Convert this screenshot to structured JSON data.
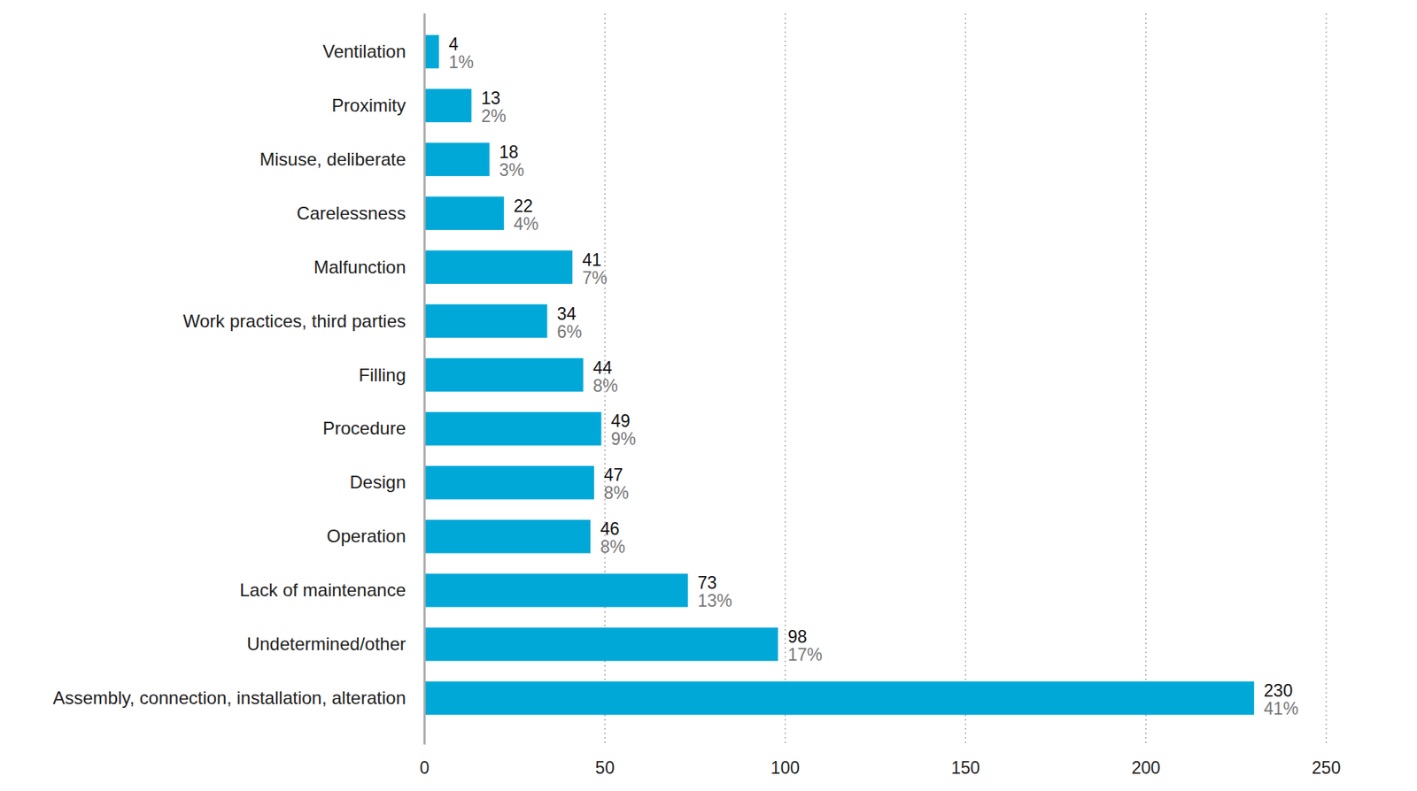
{
  "chart_data": {
    "type": "bar",
    "orientation": "horizontal",
    "categories": [
      "Ventilation",
      "Proximity",
      "Misuse, deliberate",
      "Carelessness",
      "Malfunction",
      "Work practices, third parties",
      "Filling",
      "Procedure",
      "Design",
      "Operation",
      "Lack of maintenance",
      "Undetermined/other",
      "Assembly, connection, installation, alteration"
    ],
    "values": [
      4,
      13,
      18,
      22,
      41,
      34,
      44,
      49,
      47,
      46,
      73,
      98,
      230
    ],
    "percent_labels": [
      "1%",
      "2%",
      "3%",
      "4%",
      "7%",
      "6%",
      "8%",
      "9%",
      "8%",
      "8%",
      "13%",
      "17%",
      "41%"
    ],
    "color": "#00a8d8",
    "xlim": [
      0,
      250
    ],
    "xticks": [
      0,
      50,
      100,
      150,
      200,
      250
    ],
    "grid": true,
    "data_labels": true
  }
}
